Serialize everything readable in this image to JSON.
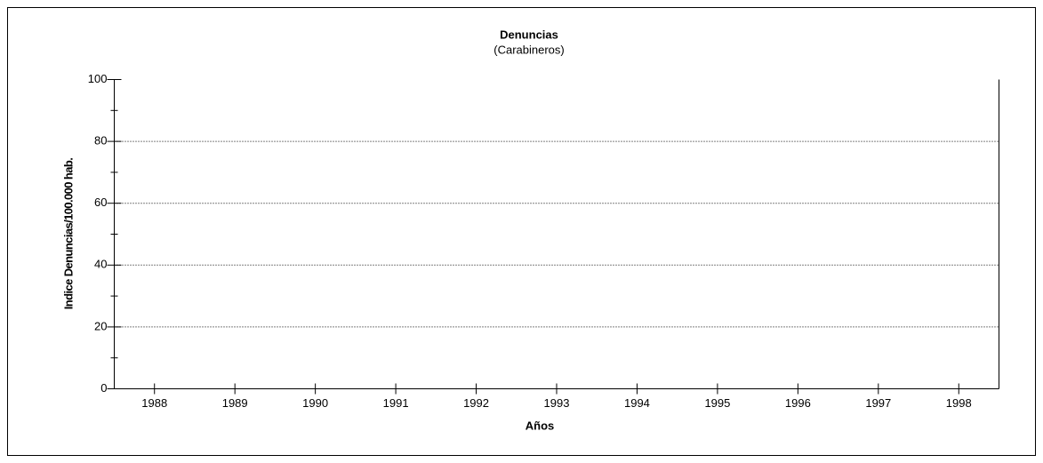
{
  "chart_data": {
    "type": "line",
    "title": "Denuncias",
    "subtitle": "(Carabineros)",
    "x_label": "Años",
    "y_label": "Indice Denuncias/100.000 hab.",
    "categories": [
      "1988",
      "1989",
      "1990",
      "1991",
      "1992",
      "1993",
      "1994",
      "1995",
      "1996",
      "1997",
      "1998"
    ],
    "values": [
      null,
      null,
      null,
      null,
      null,
      null,
      null,
      null,
      null,
      null,
      null
    ],
    "color": "#000000",
    "ylim": [
      0,
      100
    ],
    "yticks": [
      0,
      20,
      40,
      60,
      80,
      100
    ],
    "yminor_ticks": [
      10,
      30,
      50,
      70,
      90
    ],
    "grid": true
  }
}
